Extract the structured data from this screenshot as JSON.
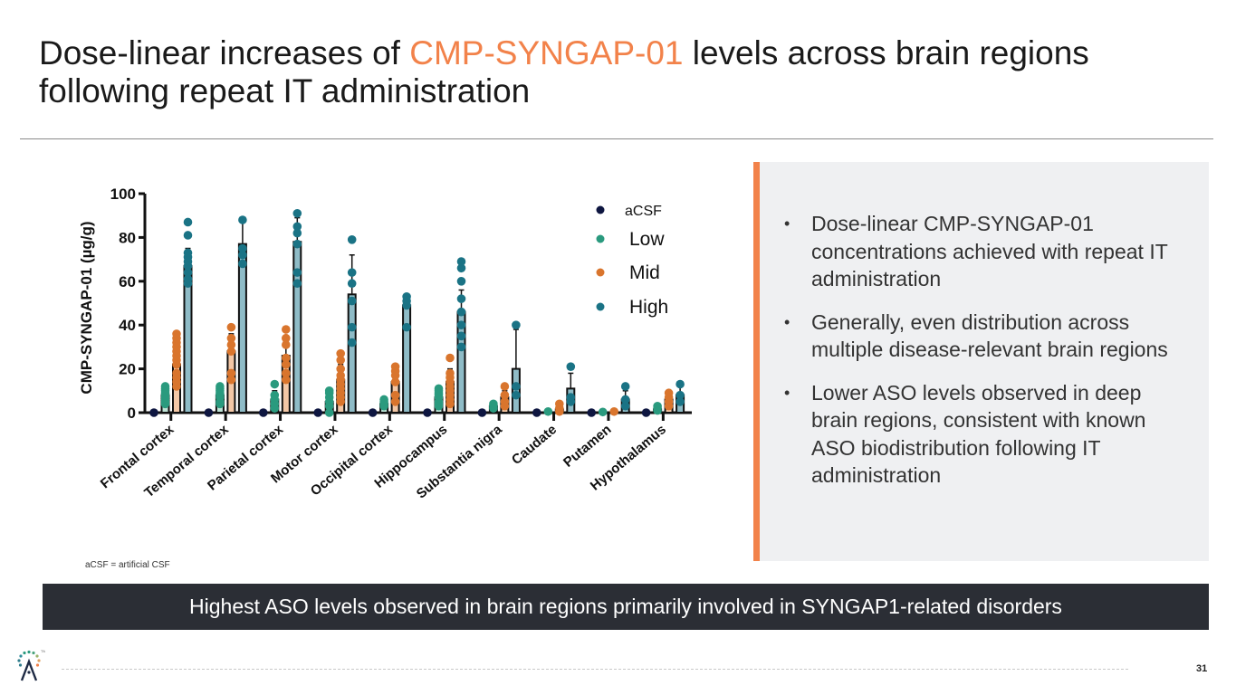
{
  "slide": {
    "title_part1": "Dose-linear increases of ",
    "title_accent": "CMP-SYNGAP-01",
    "title_part2": " levels across brain regions following repeat IT administration",
    "footnote": "aCSF = artificial CSF",
    "banner": "Highest ASO levels observed in brain regions primarily involved in SYNGAP1-related disorders",
    "page_number": "31",
    "bullet_symbol": "•",
    "bullets": [
      "Dose-linear CMP-SYNGAP-01 concentrations achieved with repeat IT administration",
      "Generally, even distribution across multiple disease-relevant brain regions",
      "Lower ASO levels observed in deep brain regions, consistent with known ASO biodistribution following IT administration"
    ],
    "colors": {
      "accent": "#F2824A",
      "banner_bg": "#2B2E35",
      "panel_bg": "#EFF0F2"
    }
  },
  "chart_data": {
    "type": "bar",
    "subtype": "grouped bar with individual data points and SD error bars",
    "title": "",
    "xlabel": "",
    "ylabel": "CMP-SYNGAP-01 (µg/g)",
    "ylim": [
      0,
      100
    ],
    "yticks": [
      0,
      20,
      40,
      60,
      80,
      100
    ],
    "grid": false,
    "legend_position": "top-right",
    "categories": [
      "Frontal cortex",
      "Temporal cortex",
      "Parietal cortex",
      "Motor cortex",
      "Occipital cortex",
      "Hippocampus",
      "Substantia nigra",
      "Caudate",
      "Putamen",
      "Hypothalamus"
    ],
    "series": [
      {
        "name": "aCSF",
        "color": "#0E1640",
        "bar_fill": "#ffffff",
        "values": [
          0,
          0,
          0,
          0,
          0,
          0,
          0,
          0,
          0,
          0
        ],
        "errors": [
          0,
          0,
          0,
          0,
          0,
          0,
          0,
          0,
          0,
          0
        ],
        "points": [
          [
            0
          ],
          [
            0
          ],
          [
            0
          ],
          [
            0
          ],
          [
            0
          ],
          [
            0
          ],
          [
            0
          ],
          [
            0
          ],
          [
            0
          ],
          [
            0
          ]
        ]
      },
      {
        "name": "Low",
        "color": "#2A9A7E",
        "bar_fill": "#BFE3D6",
        "values": [
          8,
          8,
          6,
          5,
          4,
          7,
          3,
          0.5,
          0.3,
          1.5
        ],
        "errors": [
          3,
          3,
          4,
          4,
          1.5,
          3,
          1,
          0.3,
          0.2,
          1
        ],
        "points": [
          [
            4,
            5,
            6,
            7,
            8,
            9,
            10,
            11,
            12
          ],
          [
            4,
            5,
            7,
            8,
            9,
            10,
            11,
            12
          ],
          [
            2,
            4,
            6,
            8,
            13
          ],
          [
            0,
            3,
            5,
            7,
            9,
            10
          ],
          [
            3,
            4,
            5,
            6
          ],
          [
            3,
            4,
            5,
            7,
            8,
            9,
            10,
            11
          ],
          [
            2,
            3,
            4
          ],
          [
            0.5
          ],
          [
            0.3
          ],
          [
            1,
            2,
            3
          ]
        ]
      },
      {
        "name": "Mid",
        "color": "#D9752D",
        "bar_fill": "#F3C7A6",
        "values": [
          22,
          28,
          26,
          15,
          14,
          14,
          7,
          1.5,
          0.5,
          6
        ],
        "errors": [
          8,
          8,
          8,
          7,
          5,
          6,
          3,
          1,
          0.3,
          2
        ],
        "points": [
          [
            12,
            14,
            16,
            18,
            22,
            24,
            26,
            28,
            30,
            32,
            34,
            36
          ],
          [
            15,
            18,
            28,
            31,
            34,
            39
          ],
          [
            15,
            18,
            22,
            25,
            31,
            34,
            38
          ],
          [
            5,
            7,
            9,
            11,
            13,
            15,
            17,
            20,
            24,
            27
          ],
          [
            5,
            8,
            14,
            17,
            19,
            21
          ],
          [
            4,
            6,
            8,
            10,
            12,
            14,
            16,
            18,
            25
          ],
          [
            3,
            5,
            8,
            12
          ],
          [
            0.5,
            2,
            4
          ],
          [
            0.5
          ],
          [
            3,
            5,
            7,
            9
          ]
        ]
      },
      {
        "name": "High",
        "color": "#1A7385",
        "bar_fill": "#8FBCC7",
        "values": [
          67,
          77,
          78,
          54,
          49,
          46,
          20,
          11,
          6,
          8
        ],
        "errors": [
          8,
          10,
          11,
          18,
          5,
          10,
          18,
          7,
          4,
          4
        ],
        "points": [
          [
            59,
            61,
            64,
            67,
            69,
            71,
            73,
            81,
            87
          ],
          [
            68,
            72,
            75,
            88
          ],
          [
            59,
            64,
            77,
            82,
            85,
            91
          ],
          [
            32,
            39,
            51,
            59,
            64,
            79
          ],
          [
            39,
            49,
            51,
            53
          ],
          [
            30,
            35,
            40,
            46,
            52,
            60,
            66,
            69
          ],
          [
            8,
            12,
            40
          ],
          [
            5,
            7,
            21
          ],
          [
            3,
            6,
            12
          ],
          [
            5,
            8,
            13
          ]
        ]
      }
    ]
  }
}
